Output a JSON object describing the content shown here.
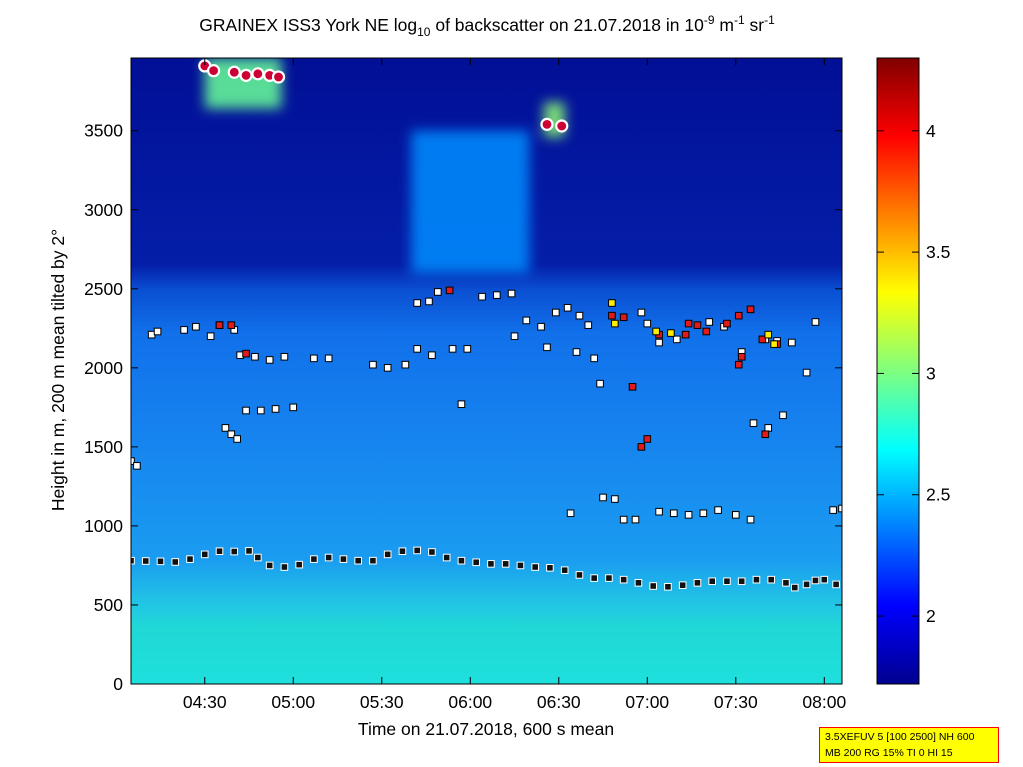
{
  "chart_data": {
    "type": "heatmap",
    "title": {
      "part1": "GRAINEX ISS3 York NE log",
      "sub": "10",
      "part2": " of backscatter on 21.07.2018 in 10",
      "sup1": "-9",
      "part3": " m",
      "sup2": "-1",
      "part4": " sr",
      "sup3": "-1"
    },
    "xlabel": "Time on 21.07.2018, 600 s mean",
    "ylabel": "Height in m, 200 m mean tilted by 2°",
    "x_ticks": [
      "04:30",
      "05:00",
      "05:30",
      "06:00",
      "06:30",
      "07:00",
      "07:30",
      "08:00"
    ],
    "x_tick_minutes": [
      270,
      300,
      330,
      360,
      390,
      420,
      450,
      480
    ],
    "xlim_minutes": [
      245,
      486
    ],
    "y_ticks": [
      0,
      500,
      1000,
      1500,
      2000,
      2500,
      3000,
      3500
    ],
    "ylim": [
      0,
      3960
    ],
    "colorbar": {
      "ticks": [
        2,
        2.5,
        3,
        3.5,
        4
      ],
      "tick_labels": [
        "2",
        "2.5",
        "3",
        "3.5",
        "4"
      ],
      "range": [
        1.72,
        4.3
      ],
      "colormap": "jet"
    },
    "background_levels": [
      {
        "height_min": 0,
        "height_max": 800,
        "value": 2.75
      },
      {
        "height_min": 800,
        "height_max": 1500,
        "value": 2.45
      },
      {
        "height_min": 1500,
        "height_max": 2200,
        "value": 2.35
      },
      {
        "height_min": 2200,
        "height_max": 2600,
        "value": 2.22
      },
      {
        "height_min": 2600,
        "height_max": 3960,
        "value": 1.85
      }
    ],
    "series": [
      {
        "marker": "square",
        "points": [
          [
            245,
            780
          ],
          [
            250,
            778
          ],
          [
            255,
            776
          ],
          [
            260,
            772
          ],
          [
            265,
            790
          ],
          [
            270,
            820
          ],
          [
            275,
            840
          ],
          [
            280,
            838
          ],
          [
            285,
            842
          ],
          [
            288,
            800
          ],
          [
            292,
            750
          ],
          [
            297,
            740
          ],
          [
            302,
            755
          ],
          [
            307,
            790
          ],
          [
            312,
            800
          ],
          [
            317,
            790
          ],
          [
            322,
            780
          ],
          [
            327,
            780
          ],
          [
            332,
            820
          ],
          [
            337,
            840
          ],
          [
            342,
            845
          ],
          [
            347,
            835
          ],
          [
            352,
            800
          ],
          [
            357,
            780
          ],
          [
            362,
            770
          ],
          [
            367,
            760
          ],
          [
            372,
            760
          ],
          [
            377,
            750
          ],
          [
            382,
            740
          ],
          [
            387,
            735
          ],
          [
            392,
            720
          ],
          [
            397,
            690
          ],
          [
            402,
            670
          ],
          [
            407,
            670
          ],
          [
            412,
            660
          ],
          [
            417,
            640
          ],
          [
            422,
            620
          ],
          [
            427,
            615
          ],
          [
            432,
            625
          ],
          [
            437,
            640
          ],
          [
            442,
            650
          ],
          [
            447,
            650
          ],
          [
            452,
            650
          ],
          [
            457,
            660
          ],
          [
            462,
            660
          ],
          [
            467,
            640
          ],
          [
            470,
            610
          ],
          [
            474,
            630
          ],
          [
            477,
            655
          ],
          [
            480,
            660
          ],
          [
            484,
            630
          ]
        ]
      },
      {
        "marker": "square",
        "points": [
          [
            245,
            1410
          ],
          [
            247,
            1380
          ],
          [
            252,
            2210
          ],
          [
            254,
            2230
          ],
          [
            263,
            2240
          ],
          [
            267,
            2260
          ],
          [
            272,
            2200
          ],
          [
            275,
            2270
          ],
          [
            280,
            2240
          ],
          [
            282,
            2080
          ],
          [
            287,
            2070
          ],
          [
            292,
            2050
          ],
          [
            297,
            2070
          ],
          [
            277,
            1620
          ],
          [
            279,
            1580
          ],
          [
            281,
            1550
          ],
          [
            284,
            1730
          ],
          [
            289,
            1730
          ],
          [
            294,
            1740
          ],
          [
            300,
            1750
          ],
          [
            307,
            2060
          ],
          [
            312,
            2060
          ],
          [
            327,
            2020
          ],
          [
            332,
            2000
          ],
          [
            338,
            2020
          ],
          [
            342,
            2410
          ],
          [
            346,
            2420
          ],
          [
            349,
            2480
          ],
          [
            342,
            2120
          ],
          [
            347,
            2080
          ],
          [
            354,
            2120
          ],
          [
            357,
            1770
          ],
          [
            359,
            2120
          ],
          [
            364,
            2450
          ],
          [
            369,
            2460
          ],
          [
            374,
            2470
          ],
          [
            375,
            2200
          ],
          [
            379,
            2300
          ],
          [
            384,
            2260
          ],
          [
            386,
            2130
          ],
          [
            389,
            2350
          ],
          [
            393,
            2380
          ],
          [
            394,
            1080
          ],
          [
            396,
            2100
          ],
          [
            397,
            2330
          ],
          [
            400,
            2270
          ],
          [
            402,
            2060
          ],
          [
            404,
            1900
          ],
          [
            405,
            1180
          ],
          [
            409,
            1170
          ],
          [
            412,
            1040
          ],
          [
            416,
            1040
          ],
          [
            418,
            2350
          ],
          [
            420,
            2280
          ],
          [
            424,
            1090
          ],
          [
            429,
            1080
          ],
          [
            434,
            1070
          ],
          [
            439,
            1080
          ],
          [
            444,
            1100
          ],
          [
            450,
            1070
          ],
          [
            455,
            1040
          ],
          [
            424,
            2160
          ],
          [
            430,
            2180
          ],
          [
            441,
            2290
          ],
          [
            446,
            2260
          ],
          [
            452,
            2100
          ],
          [
            456,
            1650
          ],
          [
            461,
            1620
          ],
          [
            466,
            1700
          ],
          [
            460,
            2180
          ],
          [
            464,
            2170
          ],
          [
            469,
            2160
          ],
          [
            474,
            1970
          ],
          [
            477,
            2290
          ],
          [
            483,
            1100
          ],
          [
            486,
            1110
          ]
        ]
      },
      {
        "marker": "square",
        "points": [
          [
            275,
            2270
          ],
          [
            279,
            2270
          ],
          [
            284,
            2090
          ],
          [
            353,
            2490
          ],
          [
            408,
            2330
          ],
          [
            412,
            2320
          ],
          [
            415,
            1880
          ],
          [
            418,
            1500
          ],
          [
            420,
            1550
          ],
          [
            424,
            2210
          ],
          [
            433,
            2210
          ],
          [
            434,
            2280
          ],
          [
            437,
            2270
          ],
          [
            440,
            2230
          ],
          [
            447,
            2280
          ],
          [
            451,
            2330
          ],
          [
            451,
            2020
          ],
          [
            452,
            2070
          ],
          [
            455,
            2370
          ],
          [
            459,
            2180
          ],
          [
            460,
            1580
          ],
          [
            464,
            2150
          ]
        ]
      },
      {
        "marker": "square",
        "points": [
          [
            408,
            2410
          ],
          [
            409,
            2280
          ],
          [
            423,
            2230
          ],
          [
            428,
            2220
          ],
          [
            461,
            2210
          ],
          [
            463,
            2150
          ]
        ]
      },
      {
        "marker": "circle",
        "points": [
          [
            270,
            3910
          ],
          [
            273,
            3880
          ],
          [
            280,
            3870
          ],
          [
            284,
            3850
          ],
          [
            288,
            3860
          ],
          [
            292,
            3850
          ],
          [
            295,
            3840
          ],
          [
            386,
            3540
          ],
          [
            391,
            3530
          ]
        ]
      }
    ],
    "features": [
      {
        "time_min": 270,
        "time_max": 296,
        "height_min": 3640,
        "height_max": 3960,
        "value": 2.95
      },
      {
        "time_min": 385,
        "time_max": 392,
        "height_min": 3460,
        "height_max": 3680,
        "value": 3.05
      },
      {
        "time_min": 340,
        "time_max": 380,
        "height_min": 2600,
        "height_max": 3500,
        "value": 2.4
      }
    ]
  },
  "settings_box": {
    "line1": "3.5XEFUV 5 [100 2500] NH 600",
    "line2": "MB 200 RG 15% TI 0 HI 15",
    "border_color": "#ff0000",
    "background_color": "#ffff00"
  }
}
